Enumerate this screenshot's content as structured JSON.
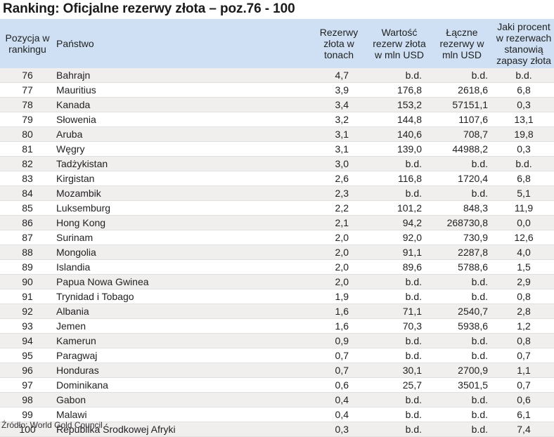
{
  "title": "Ranking: Oficjalne rezerwy złota – poz.76 - 100",
  "headers": {
    "position": "Pozycja w rankingu",
    "country": "Państwo",
    "reserves": "Rezerwy złota w tonach",
    "value": "Wartość rezerw złota w mln USD",
    "total": "Łączne rezerwy w mln USD",
    "percent": "Jaki procent w rezerwach stanowią zapasy złota"
  },
  "rows": [
    {
      "pos": "76",
      "country": "Bahrajn",
      "reserves": "4,7",
      "value": "b.d.",
      "total": "b.d.",
      "percent": "b.d."
    },
    {
      "pos": "77",
      "country": "Mauritius",
      "reserves": "3,9",
      "value": "176,8",
      "total": "2618,6",
      "percent": "6,8"
    },
    {
      "pos": "78",
      "country": "Kanada",
      "reserves": "3,4",
      "value": "153,2",
      "total": "57151,1",
      "percent": "0,3"
    },
    {
      "pos": "79",
      "country": "Słowenia",
      "reserves": "3,2",
      "value": "144,8",
      "total": "1107,6",
      "percent": "13,1"
    },
    {
      "pos": "80",
      "country": "Aruba",
      "reserves": "3,1",
      "value": "140,6",
      "total": "708,7",
      "percent": "19,8"
    },
    {
      "pos": "81",
      "country": "Węgry",
      "reserves": "3,1",
      "value": "139,0",
      "total": "44988,2",
      "percent": "0,3"
    },
    {
      "pos": "82",
      "country": "Tadżykistan",
      "reserves": "3,0",
      "value": "b.d.",
      "total": "b.d.",
      "percent": "b.d."
    },
    {
      "pos": "83",
      "country": "Kirgistan",
      "reserves": "2,6",
      "value": "116,8",
      "total": "1720,4",
      "percent": "6,8"
    },
    {
      "pos": "84",
      "country": "Mozambik",
      "reserves": "2,3",
      "value": "b.d.",
      "total": "b.d.",
      "percent": "5,1"
    },
    {
      "pos": "85",
      "country": "Luksemburg",
      "reserves": "2,2",
      "value": "101,2",
      "total": "848,3",
      "percent": "11,9"
    },
    {
      "pos": "86",
      "country": "Hong Kong",
      "reserves": "2,1",
      "value": "94,2",
      "total": "268730,8",
      "percent": "0,0"
    },
    {
      "pos": "87",
      "country": "Surinam",
      "reserves": "2,0",
      "value": "92,0",
      "total": "730,9",
      "percent": "12,6"
    },
    {
      "pos": "88",
      "country": "Mongolia",
      "reserves": "2,0",
      "value": "91,1",
      "total": "2287,8",
      "percent": "4,0"
    },
    {
      "pos": "89",
      "country": "Islandia",
      "reserves": "2,0",
      "value": "89,6",
      "total": "5788,6",
      "percent": "1,5"
    },
    {
      "pos": "90",
      "country": "Papua Nowa Gwinea",
      "reserves": "2,0",
      "value": "b.d.",
      "total": "b.d.",
      "percent": "2,9"
    },
    {
      "pos": "91",
      "country": "Trynidad i Tobago",
      "reserves": "1,9",
      "value": "b.d.",
      "total": "b.d.",
      "percent": "0,8"
    },
    {
      "pos": "92",
      "country": "Albania",
      "reserves": "1,6",
      "value": "71,1",
      "total": "2540,7",
      "percent": "2,8"
    },
    {
      "pos": "93",
      "country": "Jemen",
      "reserves": "1,6",
      "value": "70,3",
      "total": "5938,6",
      "percent": "1,2"
    },
    {
      "pos": "94",
      "country": "Kamerun",
      "reserves": "0,9",
      "value": "b.d.",
      "total": "b.d.",
      "percent": "0,8"
    },
    {
      "pos": "95",
      "country": "Paragwaj",
      "reserves": "0,7",
      "value": "b.d.",
      "total": "b.d.",
      "percent": "0,7"
    },
    {
      "pos": "96",
      "country": "Honduras",
      "reserves": "0,7",
      "value": "30,1",
      "total": "2700,9",
      "percent": "1,1"
    },
    {
      "pos": "97",
      "country": "Dominikana",
      "reserves": "0,6",
      "value": "25,7",
      "total": "3501,5",
      "percent": "0,7"
    },
    {
      "pos": "98",
      "country": "Gabon",
      "reserves": "0,4",
      "value": "b.d.",
      "total": "b.d.",
      "percent": "0,6"
    },
    {
      "pos": "99",
      "country": "Malawi",
      "reserves": "0,4",
      "value": "b.d.",
      "total": "b.d.",
      "percent": "6,1"
    },
    {
      "pos": "100",
      "country": "Republika Środkowej Afryki",
      "reserves": "0,3",
      "value": "b.d.",
      "total": "b.d.",
      "percent": "7,4"
    }
  ],
  "source": "Źródło: World Gold Council",
  "colors": {
    "header_bg": "#cfe0f4",
    "shaded_row": "#f1eeee"
  }
}
